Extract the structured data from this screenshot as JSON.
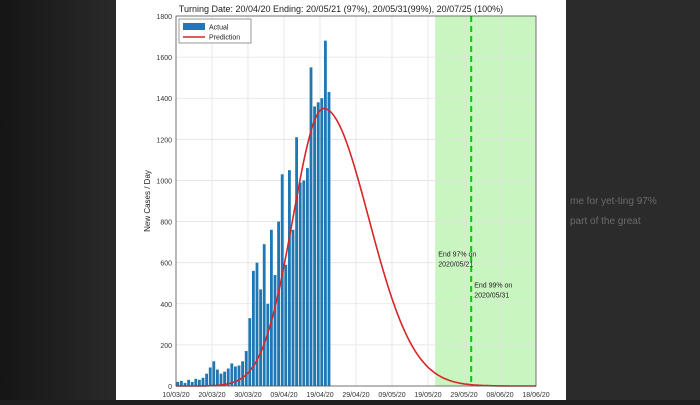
{
  "background": {
    "right_text_lines": [
      "me for yet-ting 97%",
      "part of the great"
    ]
  },
  "colors": {
    "bar": "#1f77b4",
    "prediction": "#d62728",
    "forecast_band": "#c8f5c0",
    "forecast_line": "#00cc00"
  },
  "chart_data": {
    "type": "bar",
    "title": "Turning Date: 20/04/20  Ending: 20/05/21 (97%), 20/05/31(99%), 20/07/25 (100%)",
    "xlabel": "",
    "ylabel": "New Cases / Day",
    "ylim": [
      0,
      1800
    ],
    "yticks": [
      0,
      200,
      400,
      600,
      800,
      1000,
      1200,
      1400,
      1600,
      1800
    ],
    "xdate_start": "2020-03-10",
    "xdate_end": "2020-06-18",
    "xticks": [
      {
        "date": "2020-03-10",
        "label": "10/03/20"
      },
      {
        "date": "2020-03-20",
        "label": "20/03/20"
      },
      {
        "date": "2020-03-30",
        "label": "30/03/20"
      },
      {
        "date": "2020-04-09",
        "label": "09/04/20"
      },
      {
        "date": "2020-04-19",
        "label": "19/04/20"
      },
      {
        "date": "2020-04-29",
        "label": "29/04/20"
      },
      {
        "date": "2020-05-09",
        "label": "09/05/20"
      },
      {
        "date": "2020-05-19",
        "label": "19/05/20"
      },
      {
        "date": "2020-05-29",
        "label": "29/05/20"
      },
      {
        "date": "2020-06-08",
        "label": "08/06/20"
      },
      {
        "date": "2020-06-18",
        "label": "18/06/20"
      }
    ],
    "grid": true,
    "legend_position": "top-left",
    "series": [
      {
        "name": "Actual",
        "type": "bar",
        "start_date": "2020-03-10",
        "values": [
          20,
          25,
          15,
          30,
          20,
          35,
          30,
          40,
          60,
          90,
          120,
          80,
          60,
          70,
          85,
          110,
          95,
          100,
          120,
          170,
          330,
          560,
          600,
          470,
          690,
          400,
          760,
          540,
          800,
          1030,
          590,
          1050,
          760,
          1210,
          990,
          1000,
          1060,
          1550,
          1360,
          1380,
          1400,
          1680,
          1430
        ]
      },
      {
        "name": "Prediction",
        "type": "line",
        "peak_date": "2020-04-20",
        "peak_value": 1350,
        "sigma_rise_days": 8.5,
        "sigma_fall_days": 12.5,
        "tail_floor": 0
      }
    ],
    "forecast_band": {
      "start": "2020-05-21",
      "end": "2020-06-18"
    },
    "vertical_line": {
      "date": "2020-05-31"
    },
    "annotations": [
      {
        "lines": [
          "End 97% on",
          "2020/05/21"
        ],
        "date": "2020-05-21",
        "y": 630
      },
      {
        "lines": [
          "End 99% on",
          "2020/05/31"
        ],
        "date": "2020-05-31",
        "y": 480
      }
    ]
  }
}
